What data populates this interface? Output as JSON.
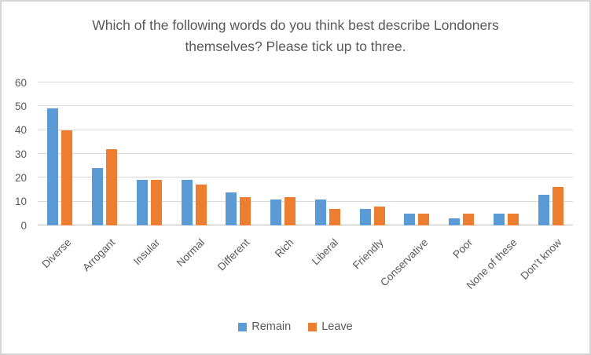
{
  "frame": {
    "background": "#ffffff",
    "border_color": "#d6d6d6"
  },
  "chart_data": {
    "type": "bar",
    "title": "Which of the following words do you think best describe Londoners themselves? Please tick up to three.",
    "categories": [
      "Diverse",
      "Arrogant",
      "Insular",
      "Normal",
      "Different",
      "Rich",
      "Liberal",
      "Friendly",
      "Conservative",
      "Poor",
      "None of these",
      "Don’t know"
    ],
    "series": [
      {
        "name": "Remain",
        "color": "#5B9BD5",
        "values": [
          49,
          24,
          19,
          19,
          14,
          11,
          11,
          7,
          5,
          3,
          5,
          13
        ]
      },
      {
        "name": "Leave",
        "color": "#ED7D31",
        "values": [
          40,
          32,
          19,
          17,
          12,
          12,
          7,
          8,
          5,
          5,
          5,
          16
        ]
      }
    ],
    "xlabel": "",
    "ylabel": "",
    "ylim": [
      0,
      60
    ],
    "y_ticks": [
      0,
      10,
      20,
      30,
      40,
      50,
      60
    ],
    "grid": "horizontal",
    "legend_position": "bottom",
    "text_color": "#595959",
    "gridline_color": "#d9d9d9",
    "axis_line_color": "#bfbfbf"
  }
}
